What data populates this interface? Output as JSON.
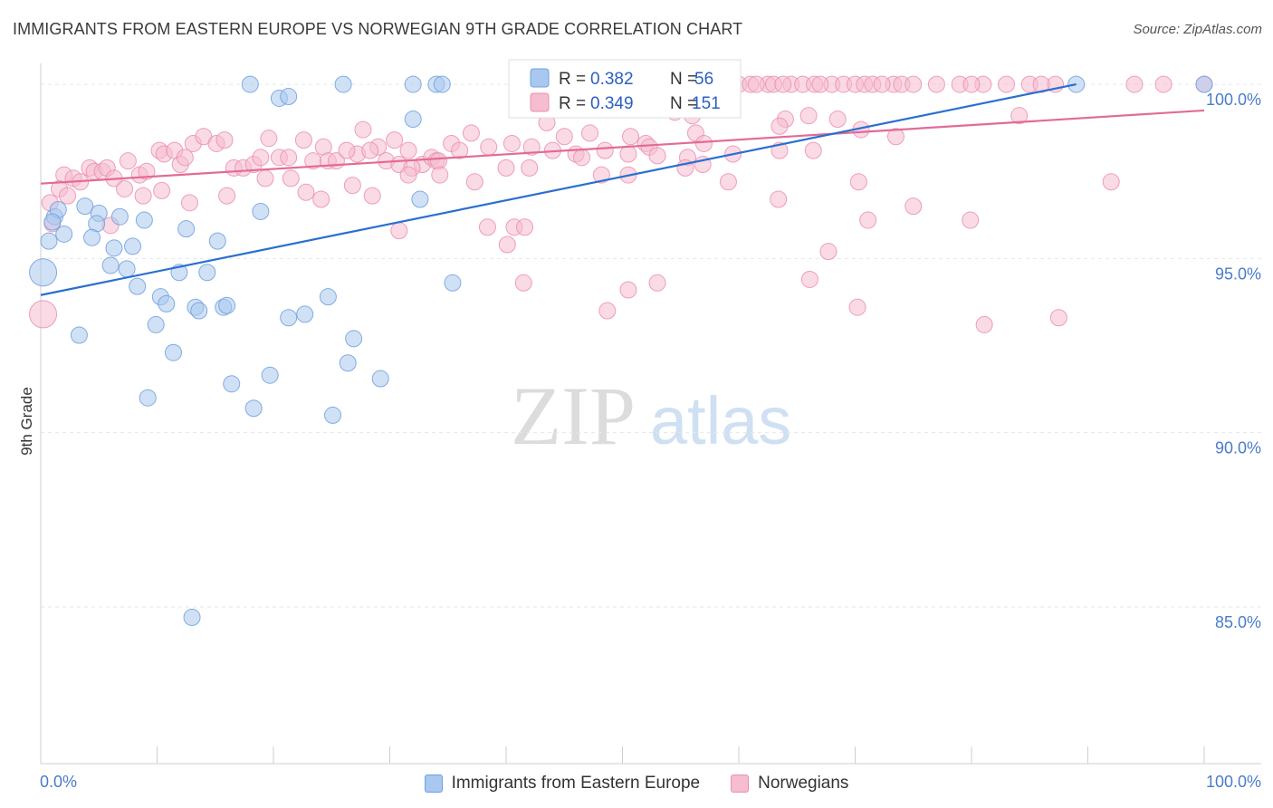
{
  "title": "IMMIGRANTS FROM EASTERN EUROPE VS NORWEGIAN 9TH GRADE CORRELATION CHART",
  "source": "Source: ZipAtlas.com",
  "watermark": {
    "zip": "ZIP",
    "atlas": "atlas"
  },
  "colors": {
    "blue_fill": "#a9c8ef",
    "blue_stroke": "#6f9fde",
    "blue_line": "#2a6fd0",
    "pink_fill": "#f6bcd0",
    "pink_stroke": "#ea8fb0",
    "pink_line": "#e36a98",
    "axis_text": "#4a7cc9"
  },
  "legend_box": {
    "r_label": "R =",
    "n_label": "N =",
    "rows": [
      {
        "series": "Immigrants from Eastern Europe",
        "r": "0.382",
        "n": "56"
      },
      {
        "series": "Norwegians",
        "r": "0.349",
        "n": "151"
      }
    ]
  },
  "bottom_legend": [
    "Immigrants from Eastern Europe",
    "Norwegians"
  ],
  "chart_data": {
    "type": "scatter",
    "title": "IMMIGRANTS FROM EASTERN EUROPE VS NORWEGIAN 9TH GRADE CORRELATION CHART",
    "xlabel": "",
    "ylabel": "9th Grade",
    "xlim": [
      0,
      100
    ],
    "ylim": [
      80.5,
      100.6
    ],
    "x_tick_labels": [
      "0.0%",
      "100.0%"
    ],
    "y_ticks": [
      85,
      90,
      95,
      100
    ],
    "y_tick_labels": [
      "85.0%",
      "90.0%",
      "95.0%",
      "100.0%"
    ],
    "grid": true,
    "legend_position": "bottom-center",
    "series": [
      {
        "name": "Immigrants from Eastern Europe",
        "r": 0.382,
        "n": 56,
        "trend": {
          "x": [
            0,
            89
          ],
          "y": [
            93.95,
            100.0
          ]
        },
        "points": [
          [
            18.0,
            100.0
          ],
          [
            26.0,
            100.0
          ],
          [
            32.0,
            100.0
          ],
          [
            34.0,
            100.0
          ],
          [
            34.5,
            100.0
          ],
          [
            89.0,
            100.0
          ],
          [
            100.0,
            100.0
          ],
          [
            20.5,
            99.6
          ],
          [
            21.3,
            99.65
          ],
          [
            32.0,
            99.0
          ],
          [
            1.2,
            96.2
          ],
          [
            1.5,
            96.4
          ],
          [
            2.0,
            95.7
          ],
          [
            3.8,
            96.5
          ],
          [
            5.0,
            96.3
          ],
          [
            4.8,
            96.0
          ],
          [
            6.8,
            96.2
          ],
          [
            8.9,
            96.1
          ],
          [
            12.5,
            95.85
          ],
          [
            15.2,
            95.5
          ],
          [
            18.9,
            96.35
          ],
          [
            32.6,
            96.7
          ],
          [
            0.7,
            95.5
          ],
          [
            4.4,
            95.6
          ],
          [
            6.3,
            95.3
          ],
          [
            7.9,
            95.35
          ],
          [
            6.0,
            94.8
          ],
          [
            7.4,
            94.7
          ],
          [
            11.9,
            94.6
          ],
          [
            14.3,
            94.6
          ],
          [
            8.3,
            94.2
          ],
          [
            35.4,
            94.3
          ],
          [
            0.2,
            94.6
          ],
          [
            10.3,
            93.9
          ],
          [
            10.8,
            93.7
          ],
          [
            13.3,
            93.6
          ],
          [
            13.6,
            93.5
          ],
          [
            15.7,
            93.6
          ],
          [
            16.0,
            93.65
          ],
          [
            21.3,
            93.3
          ],
          [
            22.7,
            93.4
          ],
          [
            24.7,
            93.9
          ],
          [
            9.9,
            93.1
          ],
          [
            3.3,
            92.8
          ],
          [
            26.9,
            92.7
          ],
          [
            11.4,
            92.3
          ],
          [
            26.4,
            92.0
          ],
          [
            19.7,
            91.65
          ],
          [
            29.2,
            91.55
          ],
          [
            16.4,
            91.4
          ],
          [
            9.2,
            91.0
          ],
          [
            18.3,
            90.7
          ],
          [
            25.1,
            90.5
          ],
          [
            13.0,
            84.7
          ],
          [
            1.0,
            96.05
          ]
        ]
      },
      {
        "name": "Norwegians",
        "r": 0.349,
        "n": 151,
        "trend": {
          "x": [
            0,
            100
          ],
          "y": [
            97.15,
            99.25
          ]
        },
        "points": [
          [
            60.0,
            100.0
          ],
          [
            61.0,
            100.0
          ],
          [
            62.5,
            100.0
          ],
          [
            63.0,
            100.0
          ],
          [
            64.5,
            100.0
          ],
          [
            65.5,
            100.0
          ],
          [
            66.5,
            100.0
          ],
          [
            68.0,
            100.0
          ],
          [
            69.0,
            100.0
          ],
          [
            70.0,
            100.0
          ],
          [
            70.8,
            100.0
          ],
          [
            71.5,
            100.0
          ],
          [
            73.3,
            100.0
          ],
          [
            74.0,
            100.0
          ],
          [
            75.0,
            100.0
          ],
          [
            77.0,
            100.0
          ],
          [
            79.0,
            100.0
          ],
          [
            81.0,
            100.0
          ],
          [
            83.0,
            100.0
          ],
          [
            85.0,
            100.0
          ],
          [
            87.2,
            100.0
          ],
          [
            94.0,
            100.0
          ],
          [
            96.5,
            100.0
          ],
          [
            100.0,
            100.0
          ],
          [
            61.5,
            100.0
          ],
          [
            67.0,
            100.0
          ],
          [
            72.3,
            100.0
          ],
          [
            86.0,
            100.0
          ],
          [
            80.0,
            100.0
          ],
          [
            63.8,
            100.0
          ],
          [
            45.0,
            99.8
          ],
          [
            47.5,
            99.6
          ],
          [
            44.5,
            99.3
          ],
          [
            49.0,
            99.4
          ],
          [
            54.5,
            99.2
          ],
          [
            56.0,
            99.1
          ],
          [
            58.5,
            99.3
          ],
          [
            64.0,
            99.0
          ],
          [
            66.0,
            99.1
          ],
          [
            68.5,
            99.0
          ],
          [
            43.5,
            98.9
          ],
          [
            45.0,
            98.5
          ],
          [
            47.2,
            98.6
          ],
          [
            50.7,
            98.5
          ],
          [
            52.0,
            98.3
          ],
          [
            56.3,
            98.6
          ],
          [
            63.5,
            98.8
          ],
          [
            70.5,
            98.7
          ],
          [
            73.5,
            98.5
          ],
          [
            37.0,
            98.6
          ],
          [
            38.5,
            98.2
          ],
          [
            40.5,
            98.3
          ],
          [
            42.2,
            98.2
          ],
          [
            44.0,
            98.1
          ],
          [
            46.0,
            98.0
          ],
          [
            48.5,
            98.1
          ],
          [
            50.5,
            98.0
          ],
          [
            52.3,
            98.2
          ],
          [
            53.0,
            97.95
          ],
          [
            55.6,
            97.9
          ],
          [
            57.0,
            98.3
          ],
          [
            59.5,
            98.0
          ],
          [
            29.0,
            98.2
          ],
          [
            30.4,
            98.4
          ],
          [
            31.6,
            98.1
          ],
          [
            32.8,
            97.7
          ],
          [
            33.6,
            97.9
          ],
          [
            34.0,
            97.8
          ],
          [
            35.3,
            98.3
          ],
          [
            27.2,
            98.0
          ],
          [
            2.0,
            97.4
          ],
          [
            2.8,
            97.3
          ],
          [
            3.4,
            97.2
          ],
          [
            4.2,
            97.6
          ],
          [
            4.6,
            97.5
          ],
          [
            5.3,
            97.5
          ],
          [
            5.7,
            97.6
          ],
          [
            6.3,
            97.3
          ],
          [
            7.5,
            97.8
          ],
          [
            8.5,
            97.4
          ],
          [
            9.1,
            97.5
          ],
          [
            10.2,
            98.1
          ],
          [
            10.6,
            98.0
          ],
          [
            11.5,
            98.1
          ],
          [
            12.0,
            97.7
          ],
          [
            12.4,
            97.9
          ],
          [
            13.1,
            98.3
          ],
          [
            14.0,
            98.5
          ],
          [
            15.1,
            98.3
          ],
          [
            15.8,
            98.4
          ],
          [
            16.6,
            97.6
          ],
          [
            17.4,
            97.6
          ],
          [
            18.3,
            97.7
          ],
          [
            18.9,
            97.9
          ],
          [
            19.6,
            98.45
          ],
          [
            20.5,
            97.9
          ],
          [
            21.3,
            97.9
          ],
          [
            22.6,
            98.4
          ],
          [
            23.4,
            97.8
          ],
          [
            24.3,
            98.2
          ],
          [
            24.7,
            97.8
          ],
          [
            25.4,
            97.8
          ],
          [
            26.3,
            98.1
          ],
          [
            27.7,
            98.7
          ],
          [
            28.3,
            98.1
          ],
          [
            29.7,
            97.8
          ],
          [
            30.8,
            97.7
          ],
          [
            31.9,
            97.6
          ],
          [
            34.2,
            97.8
          ],
          [
            36.0,
            98.1
          ],
          [
            1.6,
            97.0
          ],
          [
            2.3,
            96.8
          ],
          [
            7.2,
            97.0
          ],
          [
            8.8,
            96.8
          ],
          [
            10.4,
            96.95
          ],
          [
            16.0,
            96.8
          ],
          [
            19.3,
            97.3
          ],
          [
            21.5,
            97.3
          ],
          [
            22.8,
            96.9
          ],
          [
            24.1,
            96.7
          ],
          [
            26.8,
            97.1
          ],
          [
            28.5,
            96.8
          ],
          [
            31.6,
            97.4
          ],
          [
            34.3,
            97.4
          ],
          [
            37.3,
            97.2
          ],
          [
            40.0,
            97.6
          ],
          [
            42.0,
            97.6
          ],
          [
            46.5,
            97.9
          ],
          [
            48.2,
            97.4
          ],
          [
            50.5,
            97.4
          ],
          [
            55.4,
            97.6
          ],
          [
            56.9,
            97.7
          ],
          [
            59.1,
            97.2
          ],
          [
            63.5,
            98.1
          ],
          [
            66.4,
            98.1
          ],
          [
            70.3,
            97.2
          ],
          [
            79.9,
            96.1
          ],
          [
            1.0,
            96.0
          ],
          [
            6.0,
            95.95
          ],
          [
            12.8,
            96.6
          ],
          [
            30.8,
            95.8
          ],
          [
            38.4,
            95.9
          ],
          [
            40.7,
            95.9
          ],
          [
            41.6,
            95.9
          ],
          [
            40.1,
            95.4
          ],
          [
            63.4,
            96.7
          ],
          [
            67.7,
            95.2
          ],
          [
            71.1,
            96.1
          ],
          [
            0.8,
            96.6
          ],
          [
            75.0,
            96.5
          ],
          [
            41.5,
            94.3
          ],
          [
            50.5,
            94.1
          ],
          [
            53.0,
            94.3
          ],
          [
            66.1,
            94.4
          ],
          [
            48.7,
            93.5
          ],
          [
            70.2,
            93.6
          ],
          [
            87.5,
            93.3
          ],
          [
            81.1,
            93.1
          ],
          [
            92.0,
            97.2
          ],
          [
            84.1,
            99.1
          ],
          [
            0.2,
            93.4
          ]
        ]
      }
    ]
  }
}
